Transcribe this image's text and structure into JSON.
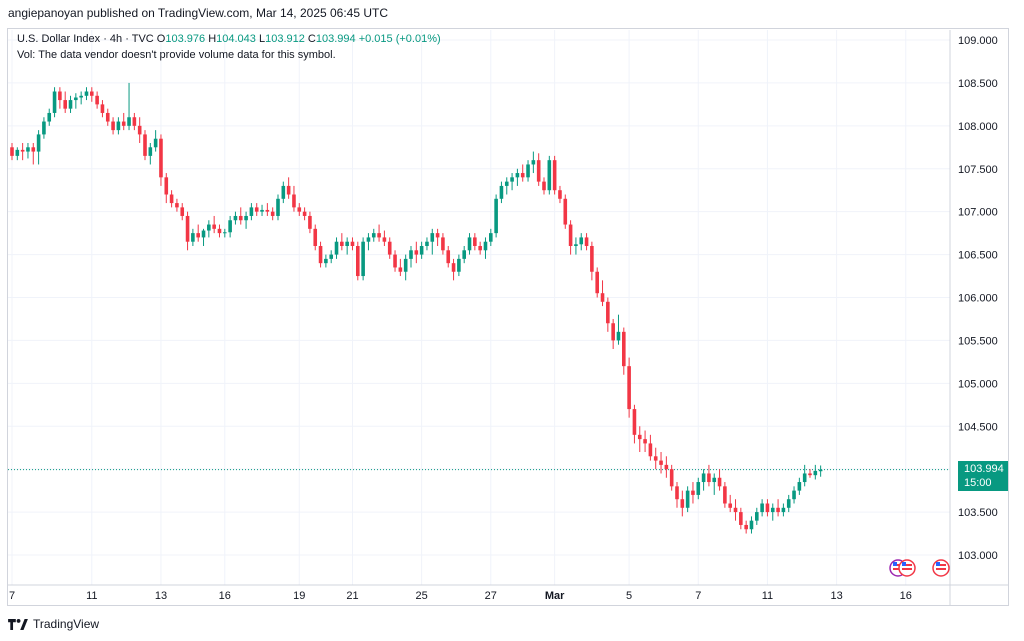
{
  "publisher": "angiepanoyan published on TradingView.com, Mar 14, 2025 06:45 UTC",
  "legend": {
    "symbol": "U.S. Dollar Index · 4h · TVC",
    "o_label": "O",
    "o_value": "103.976",
    "h_label": "H",
    "h_value": "104.043",
    "l_label": "L",
    "l_value": "103.912",
    "c_label": "C",
    "c_value": "103.994",
    "change": "+0.015 (+0.01%)"
  },
  "vol_note": "Vol: The data vendor doesn't provide volume data for this symbol.",
  "last_price": {
    "value": "103.994",
    "countdown": "15:00"
  },
  "footer": {
    "brand": "TradingView"
  },
  "colors": {
    "up": "#089981",
    "down": "#f23645",
    "grid": "#f0f3fa",
    "axis_text": "#131722"
  },
  "chart_data": {
    "type": "candlestick",
    "title": "U.S. Dollar Index · 4h · TVC",
    "ylim": [
      102.7,
      109.3
    ],
    "y_ticks": [
      "103.000",
      "103.500",
      "104.000",
      "104.500",
      "105.000",
      "105.500",
      "106.000",
      "106.500",
      "107.000",
      "107.500",
      "108.000",
      "108.500",
      "109.000"
    ],
    "x_ticks": [
      "7",
      "11",
      "13",
      "16",
      "19",
      "21",
      "25",
      "27",
      "Mar",
      "5",
      "7",
      "11",
      "13",
      "16"
    ],
    "x_tick_index": [
      0,
      15,
      28,
      40,
      54,
      64,
      77,
      90,
      102,
      116,
      129,
      142,
      155,
      168
    ],
    "last_price": 103.994,
    "ohlc": [
      [
        107.75,
        107.8,
        107.6,
        107.65
      ],
      [
        107.65,
        107.75,
        107.6,
        107.72
      ],
      [
        107.72,
        107.8,
        107.6,
        107.7
      ],
      [
        107.7,
        107.8,
        107.62,
        107.75
      ],
      [
        107.75,
        107.8,
        107.55,
        107.7
      ],
      [
        107.7,
        107.95,
        107.55,
        107.9
      ],
      [
        107.9,
        108.1,
        107.85,
        108.05
      ],
      [
        108.05,
        108.2,
        108.0,
        108.15
      ],
      [
        108.15,
        108.45,
        108.1,
        108.4
      ],
      [
        108.4,
        108.45,
        108.2,
        108.3
      ],
      [
        108.3,
        108.4,
        108.15,
        108.2
      ],
      [
        108.2,
        108.35,
        108.15,
        108.3
      ],
      [
        108.3,
        108.38,
        108.2,
        108.33
      ],
      [
        108.33,
        108.4,
        108.25,
        108.35
      ],
      [
        108.35,
        108.45,
        108.3,
        108.4
      ],
      [
        108.4,
        108.45,
        108.28,
        108.35
      ],
      [
        108.35,
        108.4,
        108.2,
        108.25
      ],
      [
        108.25,
        108.3,
        108.1,
        108.15
      ],
      [
        108.15,
        108.2,
        108.0,
        108.05
      ],
      [
        108.05,
        108.1,
        107.9,
        107.95
      ],
      [
        107.95,
        108.1,
        107.9,
        108.05
      ],
      [
        108.05,
        108.15,
        107.95,
        108.0
      ],
      [
        108.0,
        108.5,
        107.95,
        108.1
      ],
      [
        108.1,
        108.15,
        107.95,
        108.0
      ],
      [
        108.0,
        108.1,
        107.8,
        107.9
      ],
      [
        107.9,
        107.95,
        107.6,
        107.65
      ],
      [
        107.65,
        107.8,
        107.55,
        107.75
      ],
      [
        107.75,
        107.95,
        107.7,
        107.85
      ],
      [
        107.85,
        107.9,
        107.3,
        107.4
      ],
      [
        107.4,
        107.45,
        107.1,
        107.2
      ],
      [
        107.2,
        107.25,
        107.05,
        107.1
      ],
      [
        107.1,
        107.15,
        107.0,
        107.05
      ],
      [
        107.05,
        107.1,
        106.9,
        106.95
      ],
      [
        106.95,
        107.0,
        106.55,
        106.65
      ],
      [
        106.65,
        106.8,
        106.6,
        106.75
      ],
      [
        106.75,
        106.85,
        106.65,
        106.7
      ],
      [
        106.7,
        106.8,
        106.6,
        106.78
      ],
      [
        106.78,
        106.9,
        106.7,
        106.85
      ],
      [
        106.85,
        106.95,
        106.75,
        106.8
      ],
      [
        106.8,
        106.85,
        106.7,
        106.75
      ],
      [
        106.75,
        106.8,
        106.7,
        106.76
      ],
      [
        106.76,
        106.95,
        106.7,
        106.9
      ],
      [
        106.9,
        107.0,
        106.85,
        106.95
      ],
      [
        106.95,
        107.05,
        106.85,
        106.9
      ],
      [
        106.9,
        107.0,
        106.8,
        106.95
      ],
      [
        106.95,
        107.1,
        106.9,
        107.05
      ],
      [
        107.05,
        107.1,
        106.95,
        107.0
      ],
      [
        107.0,
        107.08,
        106.95,
        107.02
      ],
      [
        107.02,
        107.1,
        106.95,
        107.0
      ],
      [
        107.0,
        107.05,
        106.9,
        106.95
      ],
      [
        106.95,
        107.2,
        106.9,
        107.15
      ],
      [
        107.15,
        107.35,
        107.1,
        107.3
      ],
      [
        107.3,
        107.4,
        107.15,
        107.2
      ],
      [
        107.2,
        107.3,
        107.0,
        107.05
      ],
      [
        107.05,
        107.1,
        106.95,
        107.0
      ],
      [
        107.0,
        107.05,
        106.9,
        106.95
      ],
      [
        106.95,
        107.0,
        106.75,
        106.8
      ],
      [
        106.8,
        106.85,
        106.55,
        106.6
      ],
      [
        106.6,
        106.65,
        106.35,
        106.4
      ],
      [
        106.4,
        106.5,
        106.35,
        106.45
      ],
      [
        106.45,
        106.55,
        106.4,
        106.5
      ],
      [
        106.5,
        106.7,
        106.45,
        106.65
      ],
      [
        106.65,
        106.75,
        106.55,
        106.6
      ],
      [
        106.6,
        106.7,
        106.5,
        106.65
      ],
      [
        106.65,
        106.7,
        106.55,
        106.6
      ],
      [
        106.6,
        106.65,
        106.2,
        106.25
      ],
      [
        106.25,
        106.7,
        106.2,
        106.65
      ],
      [
        106.65,
        106.75,
        106.55,
        106.7
      ],
      [
        106.7,
        106.8,
        106.65,
        106.75
      ],
      [
        106.75,
        106.85,
        106.65,
        106.7
      ],
      [
        106.7,
        106.78,
        106.6,
        106.65
      ],
      [
        106.65,
        106.7,
        106.45,
        106.5
      ],
      [
        106.5,
        106.55,
        106.3,
        106.35
      ],
      [
        106.35,
        106.45,
        106.25,
        106.3
      ],
      [
        106.3,
        106.5,
        106.2,
        106.45
      ],
      [
        106.45,
        106.6,
        106.35,
        106.55
      ],
      [
        106.55,
        106.65,
        106.4,
        106.5
      ],
      [
        106.5,
        106.65,
        106.45,
        106.6
      ],
      [
        106.6,
        106.7,
        106.55,
        106.65
      ],
      [
        106.65,
        106.8,
        106.5,
        106.75
      ],
      [
        106.75,
        106.8,
        106.6,
        106.7
      ],
      [
        106.7,
        106.75,
        106.5,
        106.55
      ],
      [
        106.55,
        106.6,
        106.35,
        106.4
      ],
      [
        106.4,
        106.45,
        106.2,
        106.3
      ],
      [
        106.3,
        106.5,
        106.25,
        106.45
      ],
      [
        106.45,
        106.6,
        106.4,
        106.55
      ],
      [
        106.55,
        106.75,
        106.5,
        106.7
      ],
      [
        106.7,
        106.75,
        106.55,
        106.6
      ],
      [
        106.6,
        106.65,
        106.5,
        106.55
      ],
      [
        106.55,
        106.7,
        106.45,
        106.65
      ],
      [
        106.65,
        106.8,
        106.6,
        106.75
      ],
      [
        106.75,
        107.2,
        106.7,
        107.15
      ],
      [
        107.15,
        107.35,
        107.1,
        107.3
      ],
      [
        107.3,
        107.4,
        107.2,
        107.35
      ],
      [
        107.35,
        107.45,
        107.25,
        107.4
      ],
      [
        107.4,
        107.5,
        107.3,
        107.45
      ],
      [
        107.45,
        107.55,
        107.35,
        107.4
      ],
      [
        107.4,
        107.6,
        107.35,
        107.55
      ],
      [
        107.55,
        107.7,
        107.45,
        107.6
      ],
      [
        107.6,
        107.68,
        107.3,
        107.35
      ],
      [
        107.35,
        107.4,
        107.2,
        107.25
      ],
      [
        107.25,
        107.65,
        107.2,
        107.6
      ],
      [
        107.6,
        107.65,
        107.2,
        107.25
      ],
      [
        107.25,
        107.3,
        107.1,
        107.15
      ],
      [
        107.15,
        107.2,
        106.8,
        106.85
      ],
      [
        106.85,
        106.9,
        106.5,
        106.6
      ],
      [
        106.6,
        106.7,
        106.5,
        106.62
      ],
      [
        106.62,
        106.75,
        106.55,
        106.7
      ],
      [
        106.7,
        106.75,
        106.55,
        106.6
      ],
      [
        106.6,
        106.65,
        106.2,
        106.3
      ],
      [
        106.3,
        106.35,
        106.0,
        106.05
      ],
      [
        106.05,
        106.2,
        105.9,
        105.95
      ],
      [
        105.95,
        106.0,
        105.6,
        105.7
      ],
      [
        105.7,
        105.75,
        105.4,
        105.5
      ],
      [
        105.5,
        105.8,
        105.45,
        105.6
      ],
      [
        105.6,
        105.65,
        105.1,
        105.2
      ],
      [
        105.2,
        105.3,
        104.6,
        104.7
      ],
      [
        104.7,
        104.75,
        104.3,
        104.4
      ],
      [
        104.4,
        104.5,
        104.2,
        104.35
      ],
      [
        104.35,
        104.45,
        104.2,
        104.3
      ],
      [
        104.3,
        104.4,
        104.1,
        104.15
      ],
      [
        104.15,
        104.25,
        104.0,
        104.1
      ],
      [
        104.1,
        104.2,
        103.95,
        104.05
      ],
      [
        104.05,
        104.15,
        103.9,
        104.0
      ],
      [
        104.0,
        104.05,
        103.75,
        103.8
      ],
      [
        103.8,
        103.85,
        103.55,
        103.65
      ],
      [
        103.65,
        103.75,
        103.45,
        103.55
      ],
      [
        103.55,
        103.8,
        103.5,
        103.75
      ],
      [
        103.75,
        103.85,
        103.6,
        103.7
      ],
      [
        103.7,
        103.9,
        103.65,
        103.85
      ],
      [
        103.85,
        104.0,
        103.75,
        103.95
      ],
      [
        103.95,
        104.05,
        103.8,
        103.85
      ],
      [
        103.85,
        103.95,
        103.7,
        103.9
      ],
      [
        103.9,
        104.0,
        103.75,
        103.8
      ],
      [
        103.8,
        103.85,
        103.55,
        103.6
      ],
      [
        103.6,
        103.7,
        103.5,
        103.55
      ],
      [
        103.55,
        103.65,
        103.4,
        103.5
      ],
      [
        103.5,
        103.55,
        103.3,
        103.35
      ],
      [
        103.35,
        103.4,
        103.25,
        103.3
      ],
      [
        103.3,
        103.45,
        103.25,
        103.4
      ],
      [
        103.4,
        103.55,
        103.35,
        103.5
      ],
      [
        103.5,
        103.65,
        103.45,
        103.6
      ],
      [
        103.6,
        103.65,
        103.45,
        103.5
      ],
      [
        103.5,
        103.6,
        103.4,
        103.55
      ],
      [
        103.55,
        103.65,
        103.45,
        103.5
      ],
      [
        103.5,
        103.6,
        103.45,
        103.55
      ],
      [
        103.55,
        103.7,
        103.5,
        103.65
      ],
      [
        103.65,
        103.8,
        103.6,
        103.75
      ],
      [
        103.75,
        103.9,
        103.7,
        103.85
      ],
      [
        103.85,
        104.05,
        103.8,
        103.95
      ],
      [
        103.95,
        104.0,
        103.9,
        103.93
      ],
      [
        103.93,
        104.05,
        103.88,
        103.98
      ],
      [
        103.976,
        104.043,
        103.912,
        103.994
      ]
    ]
  }
}
